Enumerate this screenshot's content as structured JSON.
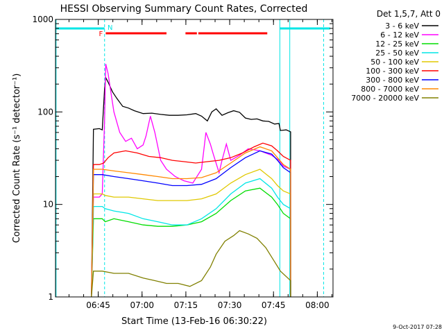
{
  "chart_data": {
    "type": "line",
    "title": "HESSI Observing Summary Count Rates, Corrected",
    "xlabel": "Start Time (13-Feb-16 06:30:22)",
    "ylabel": "Corrected Count Rate (s⁻¹ detector⁻¹)",
    "x_unit": "minutes after 06:30:22",
    "xlim": [
      0,
      95
    ],
    "ylim": [
      1,
      1000
    ],
    "y_scale": "log",
    "grid": false,
    "legend_position": "outside-right",
    "x_ticks": [
      {
        "x": 14.63,
        "label": "06:45"
      },
      {
        "x": 29.63,
        "label": "07:00"
      },
      {
        "x": 44.63,
        "label": "07:15"
      },
      {
        "x": 59.63,
        "label": "07:30"
      },
      {
        "x": 74.63,
        "label": "07:45"
      },
      {
        "x": 89.63,
        "label": "08:00"
      }
    ],
    "y_ticks": [
      {
        "y": 1,
        "label": "1"
      },
      {
        "y": 10,
        "label": "10"
      },
      {
        "y": 100,
        "label": "100"
      },
      {
        "y": 1000,
        "label": "1000"
      }
    ],
    "legend_title": "Det 1,5,7, Att 0",
    "flags": [
      {
        "label": "N",
        "color": "#00e6e6",
        "segments": [
          [
            0,
            16.8
          ],
          [
            76.8,
            94
          ]
        ]
      },
      {
        "label": "F",
        "color": "#ff0000",
        "segments": [
          [
            17.2,
            38.0
          ],
          [
            44.5,
            48.4
          ],
          [
            48.9,
            72.5
          ]
        ]
      }
    ],
    "markers": [
      {
        "x": 0.2,
        "color": "#00e6e6",
        "style": "solid"
      },
      {
        "x": 16.8,
        "color": "#00e6e6",
        "style": "dashed"
      },
      {
        "x": 76.8,
        "color": "#00e6e6",
        "style": "solid"
      },
      {
        "x": 80.2,
        "color": "#00e6e6",
        "style": "solid"
      },
      {
        "x": 91.8,
        "color": "#00e6e6",
        "style": "dashed"
      }
    ],
    "series": [
      {
        "name": "3 - 6 keV",
        "color": "#000000",
        "x": [
          12.3,
          13,
          15,
          16,
          16.8,
          17.2,
          18,
          19.5,
          21,
          23,
          25,
          27,
          30,
          33,
          36,
          39,
          42,
          45,
          48,
          50,
          52,
          53.5,
          55,
          57,
          59,
          61,
          63,
          65,
          67,
          69,
          71,
          73,
          75,
          76.5,
          77,
          79,
          80.5,
          80.5
        ],
        "y": [
          1,
          65,
          66,
          64,
          175,
          235,
          210,
          165,
          140,
          115,
          110,
          103,
          96,
          97,
          94,
          92,
          92,
          93,
          96,
          90,
          80,
          100,
          108,
          92,
          98,
          103,
          99,
          86,
          83,
          84,
          80,
          79,
          74,
          75,
          63,
          64,
          61,
          1
        ]
      },
      {
        "name": "6 - 12 keV",
        "color": "#ff00ff",
        "x": [
          12.3,
          13,
          15,
          16,
          16.8,
          17.2,
          18,
          19,
          20,
          22,
          24,
          26,
          28,
          30,
          31,
          32.5,
          34,
          36,
          38,
          41,
          44,
          47,
          50,
          51.5,
          53,
          54,
          56,
          57,
          58.5,
          60,
          63,
          66,
          70,
          74,
          76.5,
          78,
          80.5,
          80.5
        ],
        "y": [
          1,
          12,
          12,
          13,
          80,
          330,
          260,
          160,
          100,
          60,
          48,
          52,
          40,
          44,
          55,
          90,
          60,
          30,
          24,
          20,
          18,
          17,
          24,
          60,
          45,
          35,
          22,
          30,
          45,
          30,
          34,
          40,
          38,
          34,
          30,
          26,
          24,
          1
        ]
      },
      {
        "name": "12 - 25 keV",
        "color": "#00dd00",
        "x": [
          12.3,
          13,
          16,
          17,
          20,
          25,
          30,
          35,
          40,
          45,
          50,
          55,
          60,
          65,
          70,
          74,
          76,
          78,
          80.5,
          80.5
        ],
        "y": [
          1,
          7,
          7,
          6.5,
          7,
          6.5,
          6,
          5.8,
          5.8,
          6,
          6.5,
          8,
          11,
          14,
          15,
          12,
          10,
          8,
          7,
          1
        ]
      },
      {
        "name": "25 - 50 keV",
        "color": "#00e6e6",
        "x": [
          12.3,
          13,
          16,
          17,
          20,
          25,
          30,
          35,
          40,
          45,
          50,
          55,
          60,
          65,
          70,
          74,
          76,
          78,
          80.5,
          80.5
        ],
        "y": [
          1,
          9.5,
          9.5,
          9,
          8.5,
          8,
          7,
          6.5,
          6,
          6,
          7,
          9,
          13,
          17,
          19,
          15,
          12,
          10,
          9,
          1
        ]
      },
      {
        "name": "50 - 100 keV",
        "color": "#e0c800",
        "x": [
          12.3,
          13,
          16,
          17,
          20,
          25,
          30,
          35,
          40,
          45,
          50,
          55,
          60,
          65,
          70,
          74,
          76,
          78,
          80.5,
          80.5
        ],
        "y": [
          1,
          13,
          13,
          12.5,
          12,
          12,
          11.5,
          11,
          11,
          11,
          11.5,
          13,
          17,
          21,
          24,
          19,
          16,
          14,
          13,
          1
        ]
      },
      {
        "name": "100 - 300 keV",
        "color": "#ff0000",
        "x": [
          12.3,
          13,
          15,
          16.5,
          18,
          20,
          24,
          28,
          32,
          36,
          40,
          44,
          48,
          52,
          56,
          60,
          64,
          68,
          71,
          74,
          76,
          78,
          80.5,
          80.5
        ],
        "y": [
          1,
          27,
          27,
          28,
          32,
          36,
          38,
          36,
          33,
          32,
          30,
          29,
          28,
          29,
          30,
          32,
          36,
          42,
          46,
          43,
          38,
          33,
          30,
          1
        ]
      },
      {
        "name": "300 - 800 keV",
        "color": "#0000ff",
        "x": [
          12.3,
          13,
          16,
          20,
          25,
          30,
          35,
          40,
          45,
          50,
          55,
          60,
          65,
          70,
          74,
          76,
          78,
          80.5,
          80.5
        ],
        "y": [
          1,
          21,
          21,
          20,
          19,
          18,
          17,
          16,
          16,
          16.5,
          19,
          25,
          32,
          38,
          35,
          30,
          25,
          22,
          1
        ]
      },
      {
        "name": "800 - 7000 keV",
        "color": "#ff8800",
        "x": [
          12.3,
          13,
          16,
          20,
          25,
          30,
          35,
          40,
          45,
          50,
          55,
          60,
          65,
          70,
          74,
          76,
          78,
          80.5,
          80.5
        ],
        "y": [
          1,
          24,
          24,
          23,
          22,
          21,
          20,
          19,
          19,
          19.5,
          22,
          28,
          36,
          42,
          38,
          32,
          27,
          24,
          1
        ]
      },
      {
        "name": "7000 - 20000 keV",
        "color": "#808000",
        "x": [
          12.3,
          13,
          16,
          20,
          25,
          30,
          34,
          38,
          42,
          46,
          50,
          53,
          55,
          58,
          61,
          63,
          66,
          69,
          72,
          75,
          77,
          80.5,
          80.5
        ],
        "y": [
          1,
          1.9,
          1.9,
          1.8,
          1.8,
          1.6,
          1.5,
          1.4,
          1.4,
          1.3,
          1.5,
          2.1,
          2.9,
          4,
          4.6,
          5.2,
          4.8,
          4.3,
          3.4,
          2.4,
          1.9,
          1.5,
          1
        ]
      }
    ]
  },
  "footer": {
    "timestamp": "9-Oct-2017 07:28"
  }
}
